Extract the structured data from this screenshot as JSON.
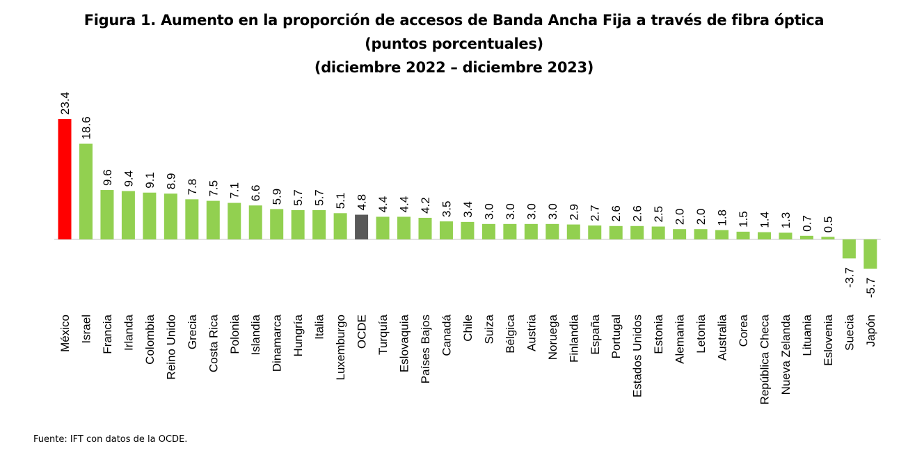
{
  "chart_data": {
    "type": "bar",
    "title": "Figura 1. Aumento en la proporción de accesos de Banda Ancha Fija a través de fibra óptica",
    "subtitle_1": "(puntos porcentuales)",
    "subtitle_2": "(diciembre 2022 – diciembre 2023)",
    "categories": [
      "México",
      "Israel",
      "Francia",
      "Irlanda",
      "Colombia",
      "Reino Unido",
      "Grecia",
      "Costa Rica",
      "Polonia",
      "Islandia",
      "Dinamarca",
      "Hungría",
      "Italia",
      "Luxemburgo",
      "OCDE",
      "Turquía",
      "Eslovaquia",
      "Países Bajos",
      "Canadá",
      "Chile",
      "Suiza",
      "Bélgica",
      "Austria",
      "Noruega",
      "Finlandia",
      "España",
      "Portugal",
      "Estados Unidos",
      "Estonia",
      "Alemania",
      "Letonia",
      "Australia",
      "Corea",
      "República Checa",
      "Nueva Zelanda",
      "Lituania",
      "Eslovenia",
      "Suecia",
      "Japón"
    ],
    "values": [
      23.4,
      18.6,
      9.6,
      9.4,
      9.1,
      8.9,
      7.8,
      7.5,
      7.1,
      6.6,
      5.9,
      5.7,
      5.7,
      5.1,
      4.8,
      4.4,
      4.4,
      4.2,
      3.5,
      3.4,
      3.0,
      3.0,
      3.0,
      3.0,
      2.9,
      2.7,
      2.6,
      2.6,
      2.5,
      2.0,
      2.0,
      1.8,
      1.5,
      1.4,
      1.3,
      0.7,
      0.5,
      -3.7,
      -5.7
    ],
    "value_labels": [
      "23.4",
      "18.6",
      "9.6",
      "9.4",
      "9.1",
      "8.9",
      "7.8",
      "7.5",
      "7.1",
      "6.6",
      "5.9",
      "5.7",
      "5.7",
      "5.1",
      "4.8",
      "4.4",
      "4.4",
      "4.2",
      "3.5",
      "3.4",
      "3.0",
      "3.0",
      "3.0",
      "3.0",
      "2.9",
      "2.7",
      "2.6",
      "2.6",
      "2.5",
      "2.0",
      "2.0",
      "1.8",
      "1.5",
      "1.4",
      "1.3",
      "0.7",
      "0.5",
      "-3.7",
      "-5.7"
    ],
    "highlight": {
      "México": "#ff0000",
      "OCDE": "#595959"
    },
    "bar_color": "#92d050",
    "ylim": [
      -5.7,
      23.4
    ],
    "grid": false,
    "legend": "none"
  },
  "source": "Fuente: IFT con datos de la OCDE."
}
